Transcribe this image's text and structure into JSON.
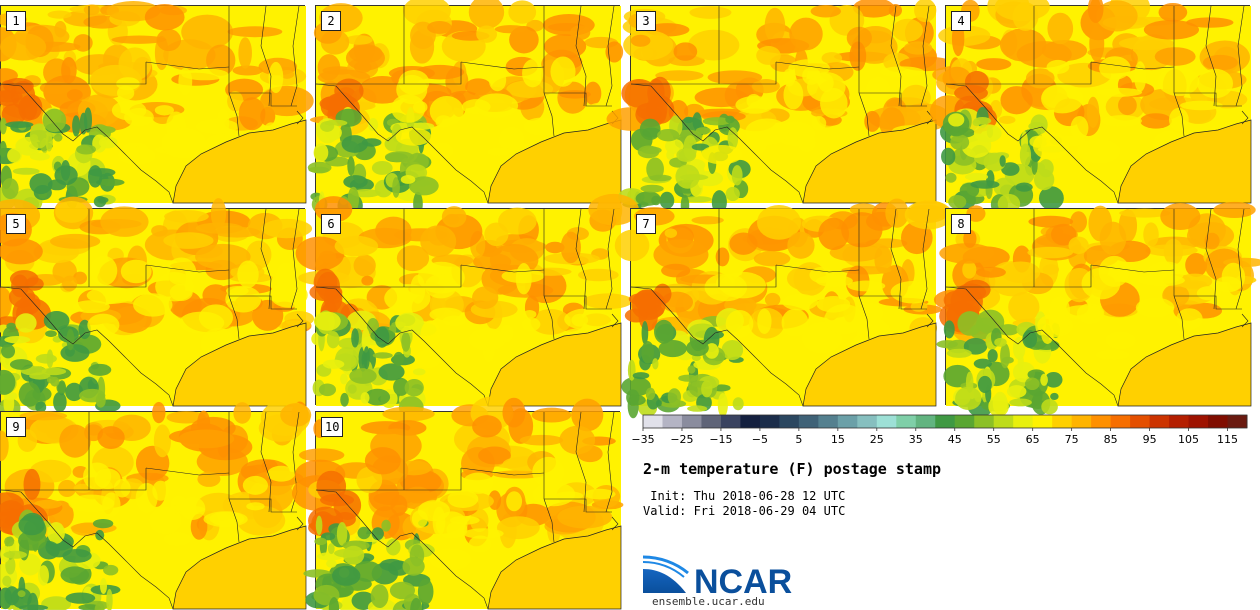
{
  "figure": {
    "title": "2-m temperature (F) postage stamp",
    "init_line": " Init: Thu 2018-06-28 12 UTC",
    "valid_line": "Valid: Fri 2018-06-29 04 UTC"
  },
  "panels": [
    {
      "label": "1"
    },
    {
      "label": "2"
    },
    {
      "label": "3"
    },
    {
      "label": "4"
    },
    {
      "label": "5"
    },
    {
      "label": "6"
    },
    {
      "label": "7"
    },
    {
      "label": "8"
    },
    {
      "label": "9"
    },
    {
      "label": "10"
    }
  ],
  "colorbar": {
    "ticks": [
      "−35",
      "−25",
      "−15",
      "−5",
      "5",
      "15",
      "25",
      "35",
      "45",
      "55",
      "65",
      "75",
      "85",
      "95",
      "105",
      "115"
    ],
    "colors": [
      "#e1e1ea",
      "#b4b4c4",
      "#8a8c9e",
      "#5f6478",
      "#3a4360",
      "#14203f",
      "#1b2d4a",
      "#2b4760",
      "#3f6277",
      "#54808f",
      "#6ba0a8",
      "#86bfbf",
      "#9de0d6",
      "#7fcfa8",
      "#62b480",
      "#3f9943",
      "#5aa632",
      "#8cc026",
      "#bedc1a",
      "#e8f00e",
      "#fff200",
      "#ffd000",
      "#ffb400",
      "#ff9000",
      "#f66e00",
      "#e44f00",
      "#cc3300",
      "#b41e00",
      "#9e1200",
      "#800d00",
      "#6a1a10"
    ],
    "range": [
      -35,
      120
    ],
    "step": 5
  },
  "logo": {
    "text": "NCAR",
    "url": "ensemble.ucar.edu"
  },
  "chart_data": {
    "type": "heatmap",
    "title": "2-m temperature (F) postage stamp",
    "members": [
      "1",
      "2",
      "3",
      "4",
      "5",
      "6",
      "7",
      "8",
      "9",
      "10"
    ],
    "colorbar_ticks": [
      -35,
      -25,
      -15,
      -5,
      5,
      15,
      25,
      35,
      45,
      55,
      65,
      75,
      85,
      95,
      105,
      115
    ],
    "colorbar_range": [
      -35,
      120
    ],
    "init": "Thu 2018-06-28 12 UTC",
    "valid": "Fri 2018-06-29 04 UTC"
  }
}
